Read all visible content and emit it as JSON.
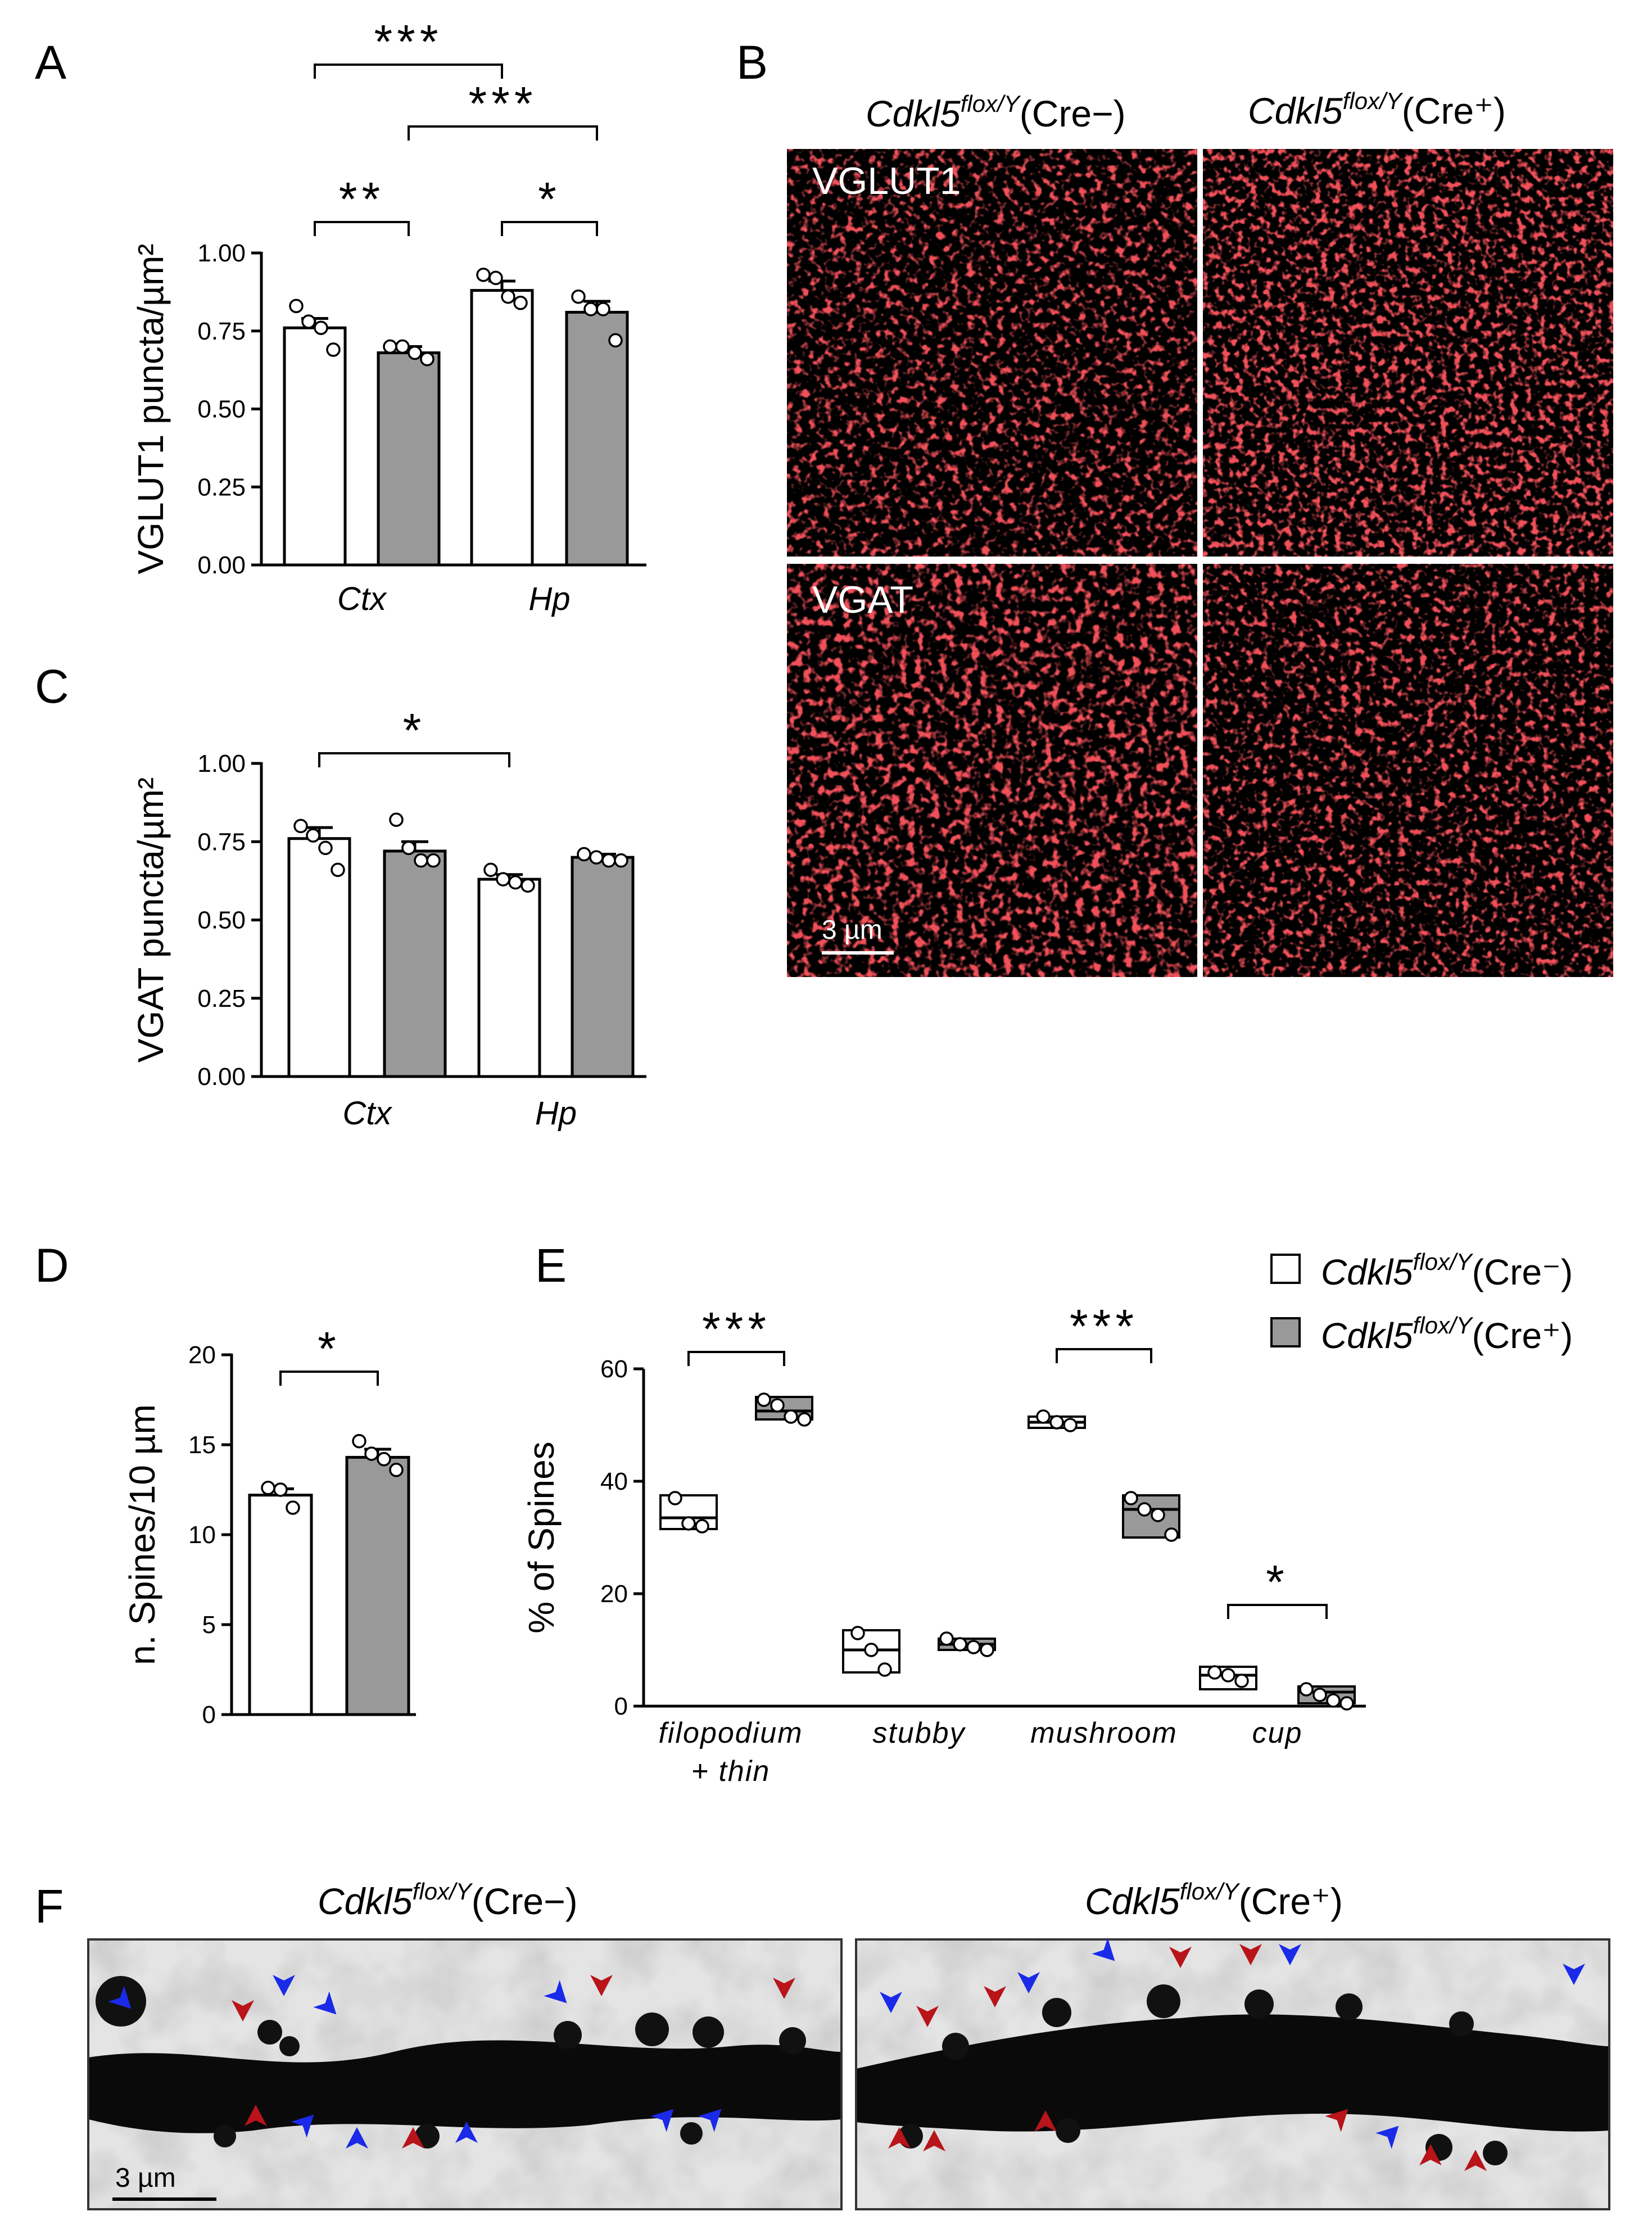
{
  "panel_labels": {
    "a": "A",
    "b": "B",
    "c": "C",
    "d": "D",
    "e": "E",
    "f": "F"
  },
  "colors": {
    "cre_minus": "#ffffff",
    "cre_plus": "#999999",
    "stain": "#e0141a",
    "arrow_red": "#b8141a",
    "arrow_blue": "#1a2ae8"
  },
  "genotype": {
    "base": "Cdkl5",
    "sup": "flox/Y",
    "minus": "(Cre−)",
    "plus": "(Cre⁺)",
    "minus_legend": "(Cre⁻)"
  },
  "panel_b": {
    "row1_label": "VGLUT1",
    "row2_label": "VGAT",
    "scalebar": "3 µm"
  },
  "panel_f": {
    "scalebar": "3 µm"
  },
  "chart_data": [
    {
      "id": "A",
      "type": "bar",
      "ylabel": "VGLUT1 puncta/µm²",
      "yticks": [
        "0.00",
        "0.25",
        "0.50",
        "0.75",
        "1.00"
      ],
      "ylim": [
        0,
        1.0
      ],
      "groups": [
        "Ctx",
        "Hp"
      ],
      "series": [
        {
          "values": [
            0.76,
            0.88
          ]
        },
        {
          "values": [
            0.68,
            0.81
          ]
        }
      ],
      "errors": [
        [
          0.03,
          0.03
        ],
        [
          0.02,
          0.035
        ]
      ],
      "points": [
        [
          [
            0.83,
            0.78,
            0.76,
            0.69
          ],
          [
            0.93,
            0.92,
            0.86,
            0.84
          ]
        ],
        [
          [
            0.7,
            0.7,
            0.68,
            0.66
          ],
          [
            0.86,
            0.82,
            0.82,
            0.72
          ]
        ]
      ],
      "significance": [
        {
          "from": [
            0,
            0
          ],
          "to": [
            1,
            0
          ],
          "label": "***"
        },
        {
          "from": [
            0,
            1
          ],
          "to": [
            1,
            1
          ],
          "label": "***"
        },
        {
          "from": [
            0,
            0
          ],
          "to": [
            0,
            1
          ],
          "label": "**"
        },
        {
          "from": [
            1,
            0
          ],
          "to": [
            1,
            1
          ],
          "label": "*"
        }
      ]
    },
    {
      "id": "C",
      "type": "bar",
      "ylabel": "VGAT puncta/µm²",
      "yticks": [
        "0.00",
        "0.25",
        "0.50",
        "0.75",
        "1.00"
      ],
      "ylim": [
        0,
        1.0
      ],
      "groups": [
        "Ctx",
        "Hp"
      ],
      "series": [
        {
          "values": [
            0.76,
            0.63
          ]
        },
        {
          "values": [
            0.72,
            0.7
          ]
        }
      ],
      "errors": [
        [
          0.035,
          0.015
        ],
        [
          0.03,
          0.01
        ]
      ],
      "points": [
        [
          [
            0.8,
            0.77,
            0.73,
            0.66
          ],
          [
            0.66,
            0.63,
            0.62,
            0.61
          ]
        ],
        [
          [
            0.82,
            0.73,
            0.69,
            0.69
          ],
          [
            0.71,
            0.7,
            0.69,
            0.69
          ]
        ]
      ],
      "significance": [
        {
          "from": [
            0,
            0
          ],
          "to": [
            1,
            0
          ],
          "label": "*"
        }
      ]
    },
    {
      "id": "D",
      "type": "bar",
      "ylabel": "n. Spines/10 µm",
      "yticks": [
        "0",
        "5",
        "10",
        "15",
        "20"
      ],
      "ylim": [
        0,
        20
      ],
      "series": [
        {
          "values": [
            12.2
          ]
        },
        {
          "values": [
            14.3
          ]
        }
      ],
      "errors": [
        [
          0.35
        ],
        [
          0.45
        ]
      ],
      "points": [
        [
          [
            12.6,
            12.5,
            11.5
          ]
        ],
        [
          [
            15.2,
            14.5,
            14.2,
            13.6
          ]
        ]
      ],
      "significance": [
        {
          "from": [
            0,
            0
          ],
          "to": [
            0,
            1
          ],
          "label": "*"
        }
      ]
    },
    {
      "id": "E",
      "type": "box",
      "ylabel": "% of Spines",
      "yticks": [
        "0",
        "20",
        "40",
        "60"
      ],
      "ylim": [
        0,
        60
      ],
      "categories": [
        "filopodium\n+ thin",
        "stubby",
        "mushroom",
        "cup"
      ],
      "legend": {
        "position": "top-right"
      },
      "series": [
        {
          "boxes": [
            [
              31.5,
              33.5,
              37.5
            ],
            [
              6,
              10,
              13.5
            ],
            [
              49.5,
              50.5,
              51.5
            ],
            [
              3,
              5.5,
              7
            ]
          ],
          "points": [
            [
              37,
              32.5,
              32
            ],
            [
              13,
              10,
              6.5
            ],
            [
              51.5,
              50.5,
              50
            ],
            [
              6,
              5.5,
              4.5
            ]
          ]
        },
        {
          "boxes": [
            [
              51,
              52.5,
              55
            ],
            [
              10,
              11,
              12
            ],
            [
              30,
              35,
              37.5
            ],
            [
              0.5,
              2.5,
              3.5
            ]
          ],
          "points": [
            [
              54.5,
              53.5,
              51.5,
              51
            ],
            [
              12,
              11,
              10.5,
              10
            ],
            [
              37,
              35,
              34,
              30.5
            ],
            [
              3,
              2,
              1,
              0.5
            ]
          ]
        }
      ],
      "significance": [
        {
          "category": 0,
          "label": "***"
        },
        {
          "category": 2,
          "label": "***"
        },
        {
          "category": 3,
          "label": "*"
        }
      ]
    }
  ]
}
